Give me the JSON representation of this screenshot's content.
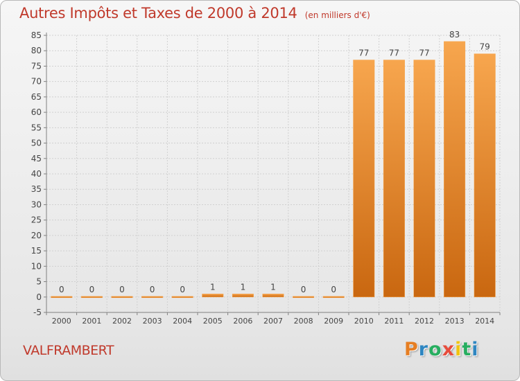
{
  "title": "Autres Impôts et Taxes de 2000 à 2014",
  "unit_label": "(en milliers d'€)",
  "commune": "VALFRAMBERT",
  "logo": {
    "letters": [
      "P",
      "r",
      "o",
      "x",
      "i",
      "t",
      "i"
    ],
    "colors": [
      "#e67e22",
      "#2e86c1",
      "#27ae60",
      "#e74c3c",
      "#f1c40f",
      "#27ae60",
      "#2e86c1"
    ]
  },
  "colors": {
    "title": "#c0392b",
    "bar_light": "#f7a64e",
    "bar_dark": "#c96710",
    "grid": "#d0d0d0",
    "axis": "#808080",
    "text": "#444444"
  },
  "chart_data": {
    "type": "bar",
    "title": "Autres Impôts et Taxes de 2000 à 2014",
    "ylabel": "",
    "xlabel": "",
    "categories": [
      "2000",
      "2001",
      "2002",
      "2003",
      "2004",
      "2005",
      "2006",
      "2007",
      "2008",
      "2009",
      "2010",
      "2011",
      "2012",
      "2013",
      "2014"
    ],
    "values": [
      0,
      0,
      0,
      0,
      0,
      1,
      1,
      1,
      0,
      0,
      77,
      77,
      77,
      83,
      79
    ],
    "labels": [
      "0",
      "0",
      "0",
      "0",
      "0",
      "1",
      "1",
      "1",
      "0",
      "0",
      "77",
      "77",
      "77",
      "83",
      "79"
    ],
    "ylim": [
      -5,
      85
    ],
    "yticks": [
      -5,
      0,
      5,
      10,
      15,
      20,
      25,
      30,
      35,
      40,
      45,
      50,
      55,
      60,
      65,
      70,
      75,
      80,
      85
    ],
    "yticklabels": [
      "-5",
      "0",
      "5",
      "10",
      "15",
      "20",
      "25",
      "30",
      "35",
      "40",
      "45",
      "50",
      "55",
      "60",
      "65",
      "70",
      "75",
      "80",
      "85"
    ],
    "grid": true
  }
}
